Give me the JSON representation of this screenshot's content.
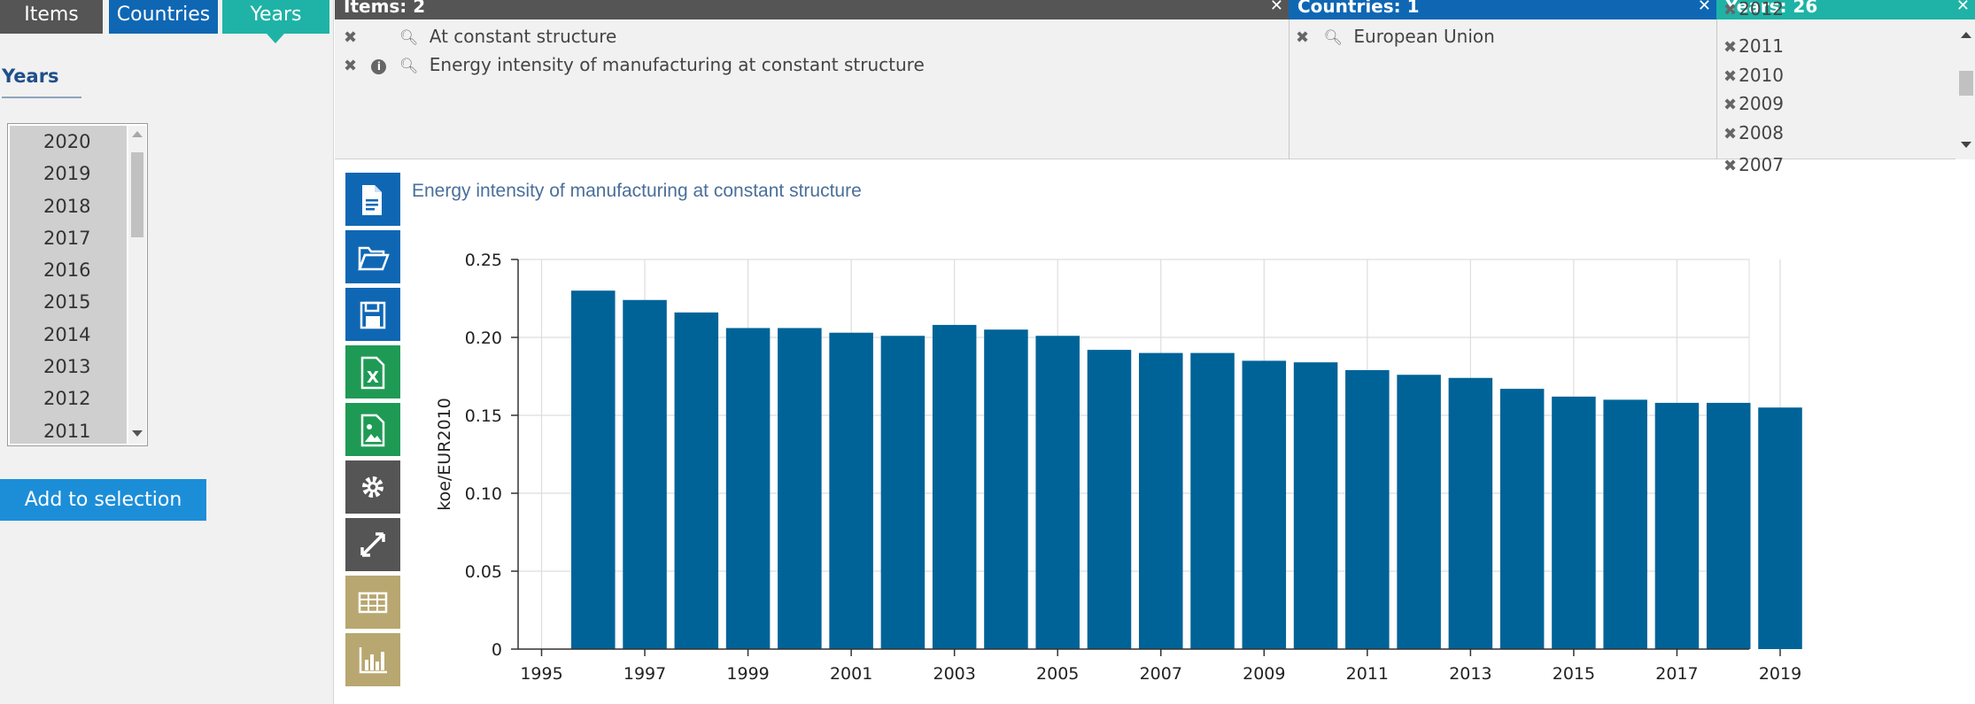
{
  "left_tabs": {
    "items": "Items",
    "countries": "Countries",
    "years": "Years"
  },
  "years_section": {
    "title": "Years",
    "options": [
      "2020",
      "2019",
      "2018",
      "2017",
      "2016",
      "2015",
      "2014",
      "2013",
      "2012",
      "2011"
    ],
    "add_button": "Add to selection"
  },
  "selection": {
    "items_header": "Items: 2",
    "countries_header": "Countries: 1",
    "years_header": "Years: 26",
    "items": [
      "At constant structure",
      "Energy intensity of manufacturing at constant structure"
    ],
    "countries": [
      "European Union"
    ],
    "years_partial_top": "2012",
    "years": [
      "2011",
      "2010",
      "2009",
      "2008"
    ],
    "years_partial_bottom": "2007"
  },
  "toolbar": {
    "icons": [
      "document-icon",
      "folder-open-icon",
      "save-icon",
      "excel-icon",
      "image-icon",
      "gear-icon",
      "expand-icon",
      "table-icon",
      "bar-chart-icon"
    ],
    "colors": [
      "#0f67b4",
      "#0f67b4",
      "#0f67b4",
      "#1f9a55",
      "#1f9a55",
      "#555555",
      "#555555",
      "#b8a770",
      "#b8a770"
    ]
  },
  "colors": {
    "bar": "#006398",
    "grid": "#dddddd",
    "title": "#4a6f9a"
  },
  "chart_data": {
    "type": "bar",
    "title": "Energy intensity of manufacturing at constant structure",
    "ylabel": "koe/EUR2010",
    "xlabel": "",
    "ylim": [
      0,
      0.25
    ],
    "yticks": [
      "0",
      "0.05",
      "0.10",
      "0.15",
      "0.20",
      "0.25"
    ],
    "xticks": [
      "1995",
      "1997",
      "1999",
      "2001",
      "2003",
      "2005",
      "2007",
      "2009",
      "2011",
      "2013",
      "2015",
      "2017",
      "2019"
    ],
    "categories": [
      "1996",
      "1997",
      "1998",
      "1999",
      "2000",
      "2001",
      "2002",
      "2003",
      "2004",
      "2005",
      "2006",
      "2007",
      "2008",
      "2009",
      "2010",
      "2011",
      "2012",
      "2013",
      "2014",
      "2015",
      "2016",
      "2017",
      "2018",
      "2019"
    ],
    "values": [
      0.23,
      0.224,
      0.216,
      0.206,
      0.206,
      0.203,
      0.201,
      0.208,
      0.205,
      0.201,
      0.192,
      0.19,
      0.19,
      0.185,
      0.184,
      0.179,
      0.176,
      0.174,
      0.167,
      0.162,
      0.16,
      0.158,
      0.158,
      0.155
    ],
    "grid": true
  }
}
